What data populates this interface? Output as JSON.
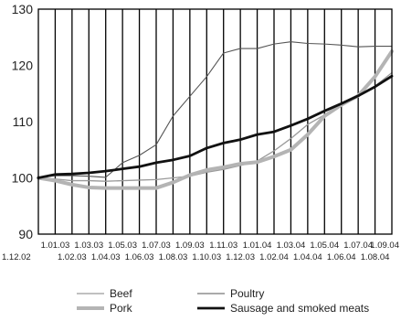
{
  "chart_data": {
    "type": "line",
    "title": "",
    "xlabel": "",
    "ylabel": "",
    "ylim": [
      90,
      130
    ],
    "yticks": [
      90,
      100,
      110,
      120,
      130
    ],
    "grid": "vertical",
    "legend_position": "bottom",
    "x": [
      "1.12.02",
      "1.01.03",
      "1.02.03",
      "1.03.03",
      "1.04.03",
      "1.05.03",
      "1.06.03",
      "1.07.03",
      "1.08.03",
      "1.09.03",
      "1.10.03",
      "1.11.03",
      "1.12.03",
      "1.01.04",
      "1.02.04",
      "1.03.04",
      "1.04.04",
      "1.05.04",
      "1.06.04",
      "1.07.04",
      "1.08.04",
      "1.09.04"
    ],
    "series": [
      {
        "name": "Beef",
        "color": "#9a9a9a",
        "width": 1.3,
        "values": [
          100,
          99.8,
          99.5,
          99.5,
          99.4,
          99.5,
          99.6,
          99.7,
          100.0,
          100.3,
          101.0,
          101.5,
          102.2,
          103.0,
          104.8,
          107.0,
          109.5,
          111.2,
          113.0,
          114.5,
          116.3,
          118.7
        ]
      },
      {
        "name": "Pork",
        "color": "#b4b4b4",
        "width": 4,
        "values": [
          100,
          99.5,
          98.8,
          98.3,
          98.2,
          98.2,
          98.2,
          98.2,
          99.2,
          100.5,
          101.4,
          101.9,
          102.5,
          102.8,
          103.8,
          105.0,
          107.7,
          111.0,
          113.0,
          114.6,
          118.0,
          122.5
        ]
      },
      {
        "name": "Poultry",
        "color": "#555555",
        "width": 1.1,
        "values": [
          100,
          100.4,
          100.4,
          100.3,
          100.1,
          102.7,
          104.0,
          105.9,
          111.0,
          114.5,
          118.0,
          122.2,
          123.0,
          123.0,
          123.8,
          124.2,
          123.9,
          123.8,
          123.6,
          123.3,
          123.4,
          123.4
        ]
      },
      {
        "name": "Sausage and smoked meats",
        "color": "#111111",
        "width": 2.8,
        "values": [
          100,
          100.6,
          100.7,
          100.9,
          101.2,
          101.6,
          102.0,
          102.7,
          103.2,
          103.9,
          105.3,
          106.2,
          106.8,
          107.7,
          108.2,
          109.3,
          110.5,
          111.9,
          113.2,
          114.6,
          116.2,
          118.1
        ]
      }
    ]
  }
}
